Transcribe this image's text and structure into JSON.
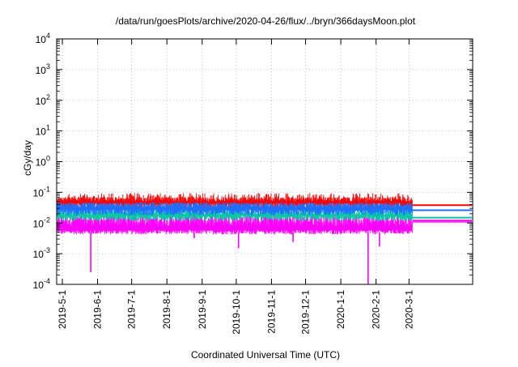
{
  "chart_data": {
    "type": "line",
    "title": "/data/run/goesPlots/archive/2020-04-26/flux/../bryn/366daysMoon.plot",
    "xlabel": "Coordinated Universal Time (UTC)",
    "ylabel": "cGy/day",
    "yscale": "log",
    "ylim": [
      0.0001,
      10000
    ],
    "xlim": [
      "2019-04-26",
      "2020-04-26"
    ],
    "grid": true,
    "y_ticks": [
      {
        "base": "10",
        "exp": "-4"
      },
      {
        "base": "10",
        "exp": "-3"
      },
      {
        "base": "10",
        "exp": "-2"
      },
      {
        "base": "10",
        "exp": "-1"
      },
      {
        "base": "10",
        "exp": "0"
      },
      {
        "base": "10",
        "exp": "1"
      },
      {
        "base": "10",
        "exp": "2"
      },
      {
        "base": "10",
        "exp": "3"
      },
      {
        "base": "10",
        "exp": "4"
      }
    ],
    "x_ticks": [
      "2019-5-1",
      "2019-6-1",
      "2019-7-1",
      "2019-8-1",
      "2019-9-1",
      "2019-10-1",
      "2019-11-1",
      "2019-12-1",
      "2020-1-1",
      "2020-2-1",
      "2020-3-1"
    ],
    "data_end": "2020-03-04",
    "series": [
      {
        "color": "#ff0000",
        "typical": 0.05,
        "peak": 0.09,
        "final": 0.038
      },
      {
        "color": "#1e6fff",
        "typical": 0.032,
        "peak": 0.05,
        "final": 0.026
      },
      {
        "color": "#00c8a0",
        "typical": 0.018,
        "peak": 0.025,
        "final": 0.015
      },
      {
        "color": "#ff00ff",
        "typical": 0.008,
        "low": 0.005,
        "final": 0.012,
        "dips": [
          {
            "date": "2019-05-26",
            "value": 0.00025
          },
          {
            "date": "2019-08-25",
            "value": 0.0032
          },
          {
            "date": "2019-10-03",
            "value": 0.0015
          },
          {
            "date": "2019-11-20",
            "value": 0.0024
          },
          {
            "date": "2020-01-25",
            "value": 0.0001
          },
          {
            "date": "2020-02-04",
            "value": 0.0017
          }
        ]
      }
    ]
  }
}
